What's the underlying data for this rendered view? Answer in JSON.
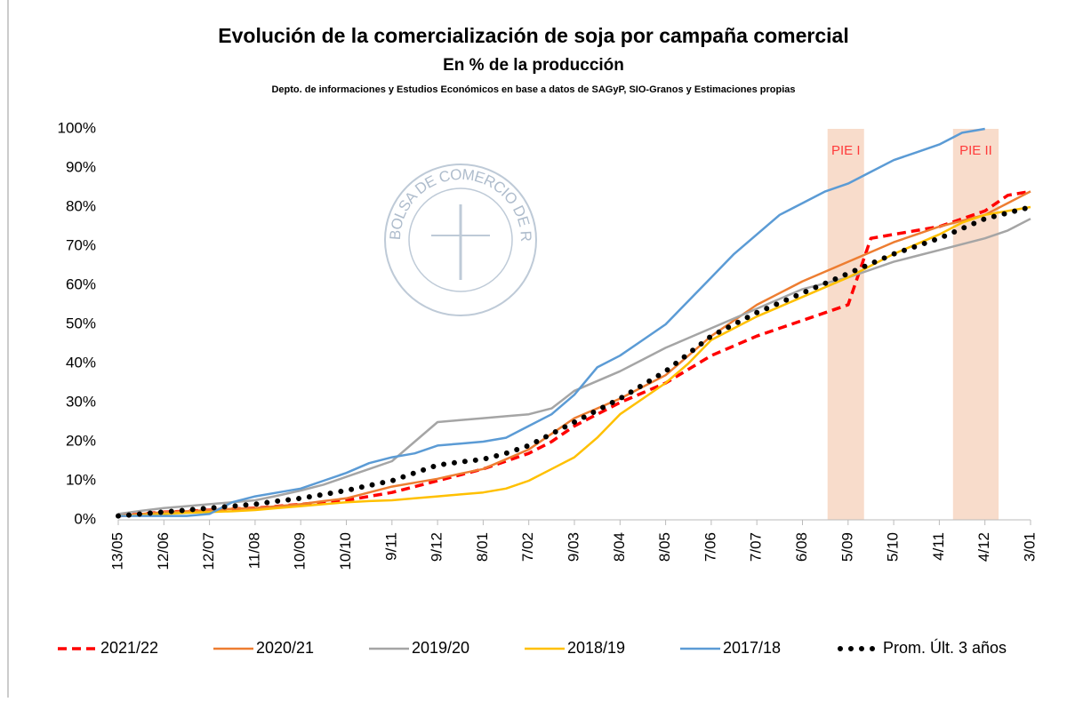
{
  "chart_data": {
    "type": "line",
    "title": "Evolución de la comercialización de soja por campaña comercial",
    "subtitle": "En % de la producción",
    "source": "Depto. de informaciones y Estudios Económicos en base a datos de SAGyP, SIO-Granos y Estimaciones propias",
    "watermark": "BOLSA DE COMERCIO DE ROSARIO",
    "categories": [
      "13/05",
      null,
      "12/06",
      null,
      "12/07",
      null,
      "11/08",
      null,
      "10/09",
      null,
      "10/10",
      null,
      "9/11",
      null,
      "9/12",
      null,
      "8/01",
      null,
      "7/02",
      null,
      "9/03",
      null,
      "8/04",
      null,
      "8/05",
      null,
      "7/06",
      null,
      "7/07",
      null,
      "6/08",
      null,
      "5/09",
      null,
      "5/10",
      null,
      "4/11",
      null,
      "4/12",
      null,
      "3/01"
    ],
    "ylim": [
      0,
      100
    ],
    "yticks": [
      {
        "value": 0,
        "label": "0%"
      },
      {
        "value": 10,
        "label": "10%"
      },
      {
        "value": 20,
        "label": "20%"
      },
      {
        "value": 30,
        "label": "30%"
      },
      {
        "value": 40,
        "label": "40%"
      },
      {
        "value": 50,
        "label": "50%"
      },
      {
        "value": 60,
        "label": "60%"
      },
      {
        "value": 70,
        "label": "70%"
      },
      {
        "value": 80,
        "label": "80%"
      },
      {
        "value": 90,
        "label": "90%"
      },
      {
        "value": 100,
        "label": "100%"
      }
    ],
    "grid": false,
    "legend": "bottom",
    "bands": [
      {
        "label": "PIE I",
        "from": 31.1,
        "to": 32.7,
        "color": "#f8dccb"
      },
      {
        "label": "PIE II",
        "from": 36.6,
        "to": 38.6,
        "color": "#f8dccb"
      }
    ],
    "series": [
      {
        "name": "2021/22",
        "color": "#ff0000",
        "style": "dashed",
        "values": [
          1,
          1.5,
          2,
          2.2,
          2.5,
          2.8,
          3,
          3.5,
          4,
          4.5,
          5,
          6,
          7,
          8.5,
          10,
          11.5,
          13,
          15,
          17,
          20,
          24,
          27,
          30,
          32.5,
          35,
          38.5,
          42,
          44.5,
          47,
          49,
          51,
          53,
          55,
          72,
          73,
          74,
          75,
          77,
          79,
          83,
          84
        ]
      },
      {
        "name": "2020/21",
        "color": "#ed7d31",
        "style": "solid",
        "values": [
          1,
          1.5,
          2,
          2.2,
          2.5,
          2.8,
          3,
          3.5,
          4,
          4.8,
          5.5,
          7,
          8.5,
          9.5,
          10.5,
          11.8,
          13,
          15.5,
          18,
          22,
          26,
          28.5,
          31,
          34,
          37,
          42,
          47,
          51,
          55,
          58,
          61,
          63.5,
          66,
          68.5,
          71,
          73,
          75,
          76.5,
          78,
          81,
          84
        ]
      },
      {
        "name": "2019/20",
        "color": "#a5a5a5",
        "style": "solid",
        "values": [
          1.5,
          2.3,
          3,
          3.5,
          4,
          4.5,
          5,
          6.2,
          7.5,
          9,
          11,
          13,
          15,
          20,
          25,
          25.5,
          26,
          26.5,
          27,
          28.5,
          33,
          35.5,
          38,
          41,
          44,
          46.5,
          49,
          51.5,
          54,
          56.5,
          59,
          60.5,
          62,
          64,
          66,
          67.5,
          69,
          70.5,
          72,
          74,
          77
        ]
      },
      {
        "name": "2018/19",
        "color": "#ffc000",
        "style": "solid",
        "values": [
          1,
          1.2,
          1.5,
          1.8,
          2,
          2.2,
          2.5,
          3,
          3.5,
          4,
          4.5,
          4.8,
          5,
          5.5,
          6,
          6.5,
          7,
          8,
          10,
          13,
          16,
          21,
          27,
          31,
          35,
          40,
          46,
          49,
          52,
          54.5,
          57,
          59.5,
          62,
          65,
          68,
          70.5,
          73,
          76,
          78,
          79,
          80
        ]
      },
      {
        "name": "2017/18",
        "color": "#5b9bd5",
        "style": "solid",
        "values": [
          1,
          1,
          1,
          1,
          1.5,
          4.5,
          6,
          7,
          8,
          10,
          12,
          14.5,
          16,
          17,
          19,
          19.5,
          20,
          21,
          24,
          27,
          32,
          39,
          42,
          46,
          50,
          56,
          62,
          68,
          73,
          78,
          81,
          84,
          86,
          89,
          92,
          94,
          96,
          99,
          100,
          null,
          null
        ]
      },
      {
        "name": "Prom. Últ. 3 años",
        "color": "#000000",
        "style": "dotted",
        "values": [
          1,
          1.5,
          2,
          2.5,
          3,
          3.5,
          4,
          4.8,
          5.5,
          6.5,
          7.5,
          8.8,
          10,
          12,
          14,
          14.8,
          15.5,
          17,
          19,
          22,
          25,
          28,
          31,
          34.5,
          38,
          42.5,
          47,
          50,
          53,
          55.5,
          58,
          60.5,
          63,
          65.5,
          68,
          70,
          72,
          74.5,
          77,
          78.5,
          80
        ]
      }
    ]
  }
}
